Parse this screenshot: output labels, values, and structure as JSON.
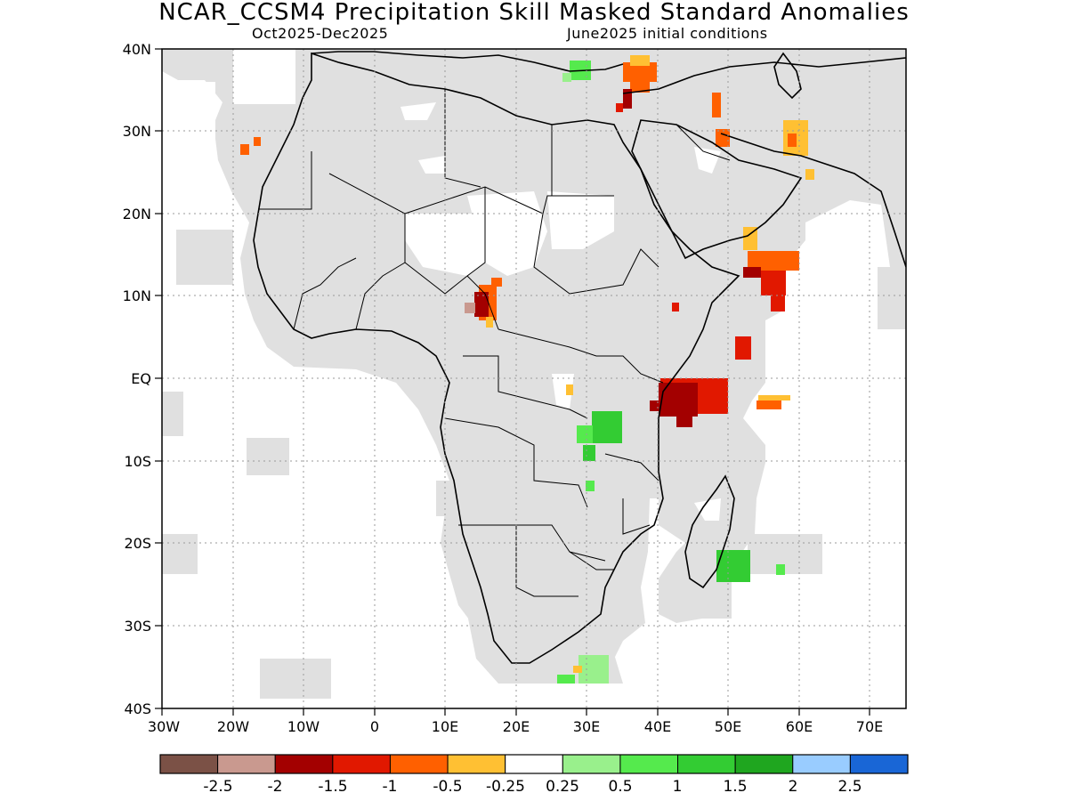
{
  "header": {
    "title": "NCAR_CCSM4 Precipitation Skill Masked Standard Anomalies",
    "period": "Oct2025-Dec2025",
    "init": "June2025 initial conditions"
  },
  "axes": {
    "lat_labels": [
      "40N",
      "30N",
      "20N",
      "10N",
      "EQ",
      "10S",
      "20S",
      "30S",
      "40S"
    ],
    "lon_labels": [
      "30W",
      "20W",
      "10W",
      "0",
      "10E",
      "20E",
      "30E",
      "40E",
      "50E",
      "60E",
      "70E"
    ]
  },
  "colorbar": {
    "colors": [
      "#7b5146",
      "#c9998f",
      "#a30000",
      "#e11800",
      "#ff6000",
      "#ffc033",
      "#ffffff",
      "#99f08c",
      "#55ea4d",
      "#33cc33",
      "#1fa61f",
      "#99ccff",
      "#1966d6"
    ],
    "labels": [
      "-2.5",
      "-2",
      "-1.5",
      "-1",
      "-0.5",
      "-0.25",
      "0.25",
      "0.5",
      "1",
      "1.5",
      "2",
      "2.5"
    ]
  },
  "colors": {
    "mask": "#e0e0e0",
    "coast": "#000000",
    "grid": "#9a9a9a"
  }
}
